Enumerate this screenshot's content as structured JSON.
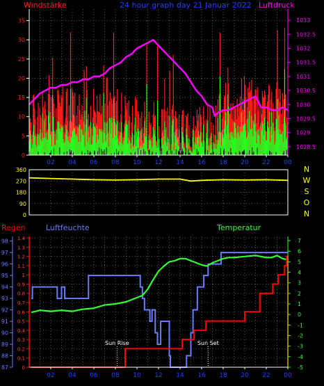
{
  "colors": {
    "background": "#000000",
    "grid": "#5a5a5a",
    "wind_title": "#ff2020",
    "pressure": "#ff00ff",
    "title": "#2040ff",
    "direction": "#ffff00",
    "rain": "#ff0000",
    "humidity": "#6b7dff",
    "temperature": "#33ff33",
    "gust": "#ff1a1a",
    "wind_avg": "#22ff22",
    "wind_min": "#111111",
    "sun": "#ffffff"
  },
  "chart_data": [
    {
      "type": "bar",
      "title": "24 hour graph day  21 Januar 2022",
      "left_label": "Windstärke",
      "right_label": "Luftdruck",
      "x_ticks": [
        "02",
        "04",
        "06",
        "08",
        "10",
        "12",
        "14",
        "16",
        "18",
        "20",
        "22",
        "00"
      ],
      "x_range": [
        0,
        24
      ],
      "left_axis": {
        "ticks": [
          0,
          5,
          10,
          15,
          20,
          25,
          30,
          35
        ],
        "range": [
          0,
          38
        ]
      },
      "right_axis": {
        "ticks": [
          1028.5,
          1029,
          1029.5,
          1030,
          1030.5,
          1031,
          1031.5,
          1032,
          1032.5,
          1033
        ],
        "range": [
          1028.2,
          1033.4
        ]
      },
      "series": [
        {
          "name": "Luftdruck",
          "type": "line",
          "axis": "right",
          "x": [
            0,
            0.5,
            1,
            1.5,
            2,
            2.5,
            3,
            3.5,
            4,
            4.5,
            5,
            5.5,
            6,
            6.5,
            7,
            7.5,
            8,
            8.5,
            9,
            9.5,
            10,
            10.5,
            11,
            11.5,
            12,
            12.5,
            13,
            13.5,
            14,
            14.5,
            15,
            15.5,
            16,
            16.5,
            17,
            17.2,
            17.5,
            18,
            18.5,
            19,
            19.5,
            20,
            20.5,
            21,
            21.5,
            22,
            22.5,
            23,
            23.5,
            24
          ],
          "y": [
            1030,
            1030.2,
            1030.4,
            1030.5,
            1030.6,
            1030.6,
            1030.7,
            1030.7,
            1030.8,
            1030.8,
            1030.9,
            1030.9,
            1031,
            1031,
            1031.1,
            1031.3,
            1031.4,
            1031.5,
            1031.7,
            1031.8,
            1032,
            1032.1,
            1032.2,
            1032.3,
            1032.1,
            1031.9,
            1031.7,
            1031.5,
            1031.3,
            1031.1,
            1030.8,
            1030.5,
            1030.3,
            1030.0,
            1029.9,
            1029.6,
            1029.7,
            1029.8,
            1029.8,
            1029.9,
            1030.0,
            1030.1,
            1030.2,
            1030.3,
            1029.9,
            1029.9,
            1029.8,
            1029.8,
            1029.9,
            1029.8
          ]
        }
      ]
    },
    {
      "type": "line",
      "right_letters": [
        "N",
        "W",
        "S",
        "O",
        "N"
      ],
      "y_ticks": [
        0,
        90,
        180,
        270,
        360
      ],
      "y_range": [
        0,
        360
      ],
      "series": [
        {
          "name": "Wind direction",
          "x": [
            0,
            2,
            4,
            6,
            8,
            10,
            12,
            14,
            15,
            16,
            18,
            20,
            22,
            24
          ],
          "y": [
            295,
            290,
            285,
            280,
            278,
            280,
            285,
            285,
            270,
            275,
            280,
            278,
            280,
            275
          ]
        }
      ]
    },
    {
      "type": "line",
      "labels": {
        "rain": "Regen",
        "humidity": "Luftfeuchte",
        "temperature": "Temperatur"
      },
      "x_ticks": [
        "02",
        "04",
        "06",
        "08",
        "10",
        "12",
        "14",
        "16",
        "18",
        "20",
        "22",
        "00"
      ],
      "x_range": [
        0,
        24
      ],
      "humidity_axis": {
        "ticks": [
          87,
          88,
          89,
          90,
          91,
          92,
          93,
          94,
          95,
          96,
          97,
          98
        ],
        "range": [
          87,
          98.4
        ]
      },
      "rain_axis": {
        "ticks": [
          "0",
          "0.1",
          "0.2",
          "0.3",
          "0.4",
          "0.5",
          "0.6",
          "0.7",
          "0.8",
          "0.9",
          "1",
          "1.1",
          "1.2",
          "1.3",
          "1.4"
        ],
        "range": [
          0,
          1.4
        ]
      },
      "temperature_axis": {
        "ticks": [
          -5,
          -4,
          -3,
          -2,
          -1,
          0,
          1,
          2,
          3,
          4,
          5,
          6,
          7
        ],
        "range": [
          -5,
          7.4
        ]
      },
      "annotations": [
        {
          "label": "Sun Rise",
          "x": 8.15
        },
        {
          "label": "Sun Set",
          "x": 16.6
        }
      ],
      "series": [
        {
          "name": "Luftfeuchte",
          "axis": "humidity",
          "x": [
            0.2,
            0.3,
            2.5,
            2.6,
            2.9,
            3.0,
            3.2,
            3.3,
            5.4,
            5.5,
            10.2,
            10.3,
            10.4,
            10.5,
            10.7,
            11.2,
            11.4,
            11.7,
            11.9,
            12.2,
            12.7,
            13.0,
            13.1,
            14.4,
            14.6,
            15.0,
            15.2,
            15.6,
            16.2,
            16.6,
            17.8,
            19.5,
            21.8,
            22.2,
            24.0
          ],
          "y": [
            93,
            94,
            94,
            93,
            93,
            94,
            94,
            93,
            93,
            95,
            95,
            94,
            94,
            93,
            92,
            91,
            92,
            90,
            89,
            91,
            91,
            88,
            87,
            87,
            88,
            90,
            92,
            94,
            95,
            96,
            97,
            97,
            97,
            97,
            97
          ]
        },
        {
          "name": "Temperatur",
          "axis": "temperature",
          "x": [
            0.2,
            1,
            2,
            3,
            4,
            5,
            6,
            7,
            8,
            9,
            10,
            10.5,
            11,
            11.5,
            12,
            12.5,
            13,
            13.5,
            14,
            14.5,
            15,
            15.5,
            16,
            16.5,
            17,
            17.5,
            18,
            18.5,
            19,
            20,
            21,
            22,
            22.5,
            23,
            23.5,
            24
          ],
          "y": [
            0.2,
            0.4,
            0.3,
            0.4,
            0.3,
            0.5,
            0.6,
            0.9,
            1.0,
            1.2,
            1.6,
            1.8,
            2.4,
            3.3,
            4.1,
            4.6,
            5.0,
            5.1,
            5.3,
            5.3,
            5.1,
            4.9,
            4.7,
            4.6,
            4.9,
            5.1,
            5.3,
            5.4,
            5.4,
            5.5,
            5.6,
            5.4,
            5.4,
            5.6,
            5.3,
            5.2
          ]
        },
        {
          "name": "Regen",
          "axis": "rain",
          "step": true,
          "x": [
            0.2,
            8.9,
            14.2,
            15.3,
            16.4,
            20.0,
            21.4,
            22.6,
            23.1,
            23.7,
            23.9,
            24.0
          ],
          "y": [
            0,
            0.2,
            0.3,
            0.4,
            0.5,
            0.6,
            0.8,
            0.9,
            1.0,
            1.1,
            1.2,
            0.0
          ]
        }
      ]
    }
  ]
}
